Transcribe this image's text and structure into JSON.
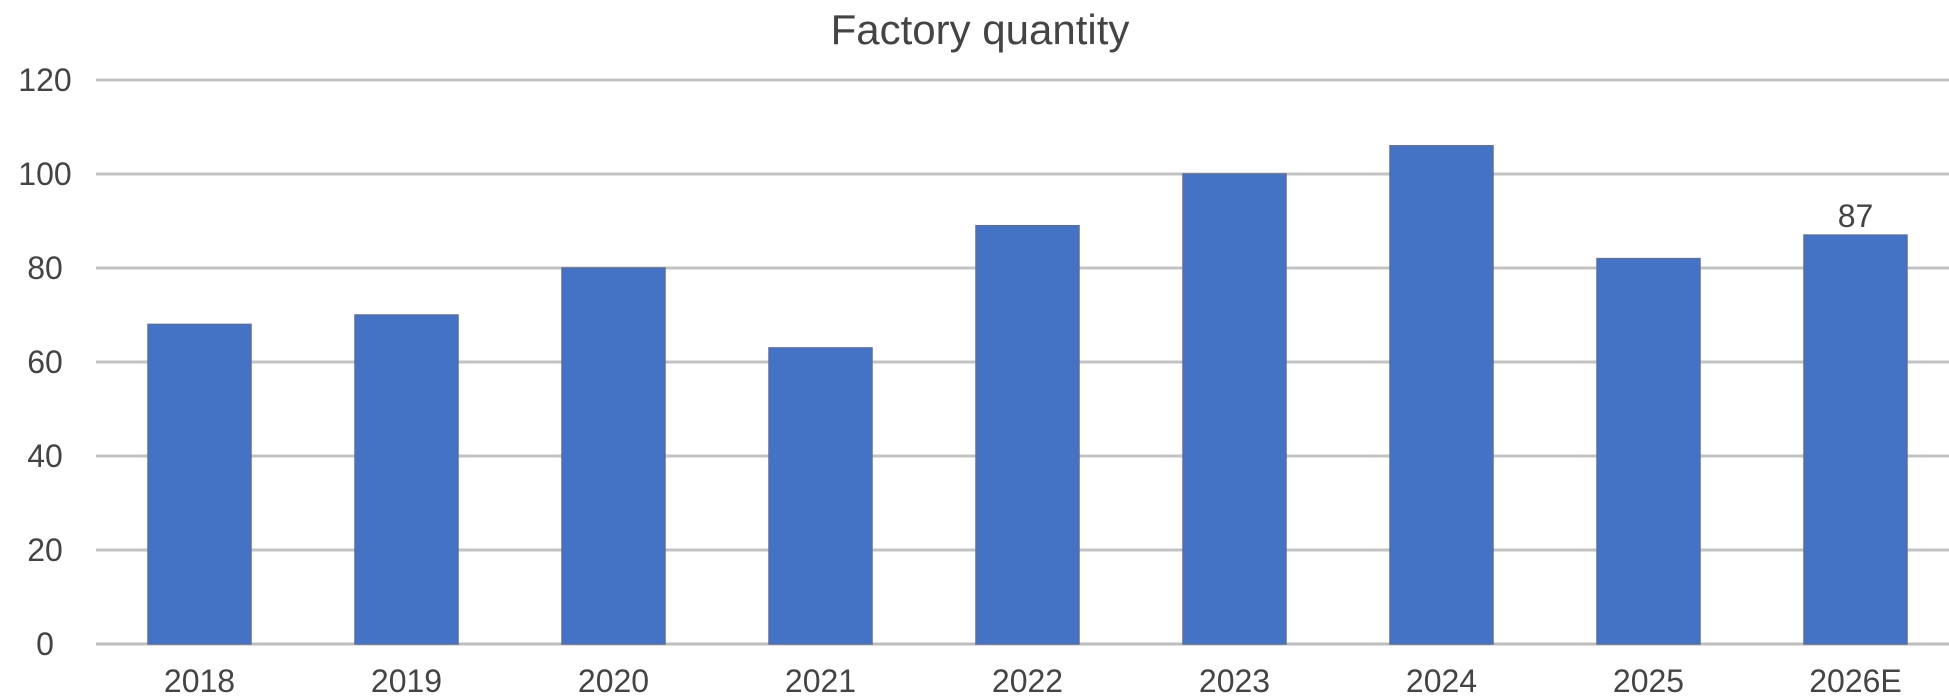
{
  "chart_data": {
    "type": "bar",
    "title": "Factory quantity",
    "xlabel": "",
    "ylabel": "",
    "categories": [
      "2018",
      "2019",
      "2020",
      "2021",
      "2022",
      "2023",
      "2024",
      "2025",
      "2026E"
    ],
    "series": [
      {
        "values": [
          68,
          70,
          80,
          63,
          89,
          100,
          106,
          82,
          87
        ],
        "color": "#4472c4"
      }
    ],
    "data_labels": [
      {
        "index": 8,
        "text": "87"
      }
    ],
    "ylim": [
      0,
      120
    ],
    "yticks": [
      "0",
      "20",
      "40",
      "60",
      "80",
      "100",
      "120"
    ],
    "grid": true,
    "legend": "none"
  }
}
